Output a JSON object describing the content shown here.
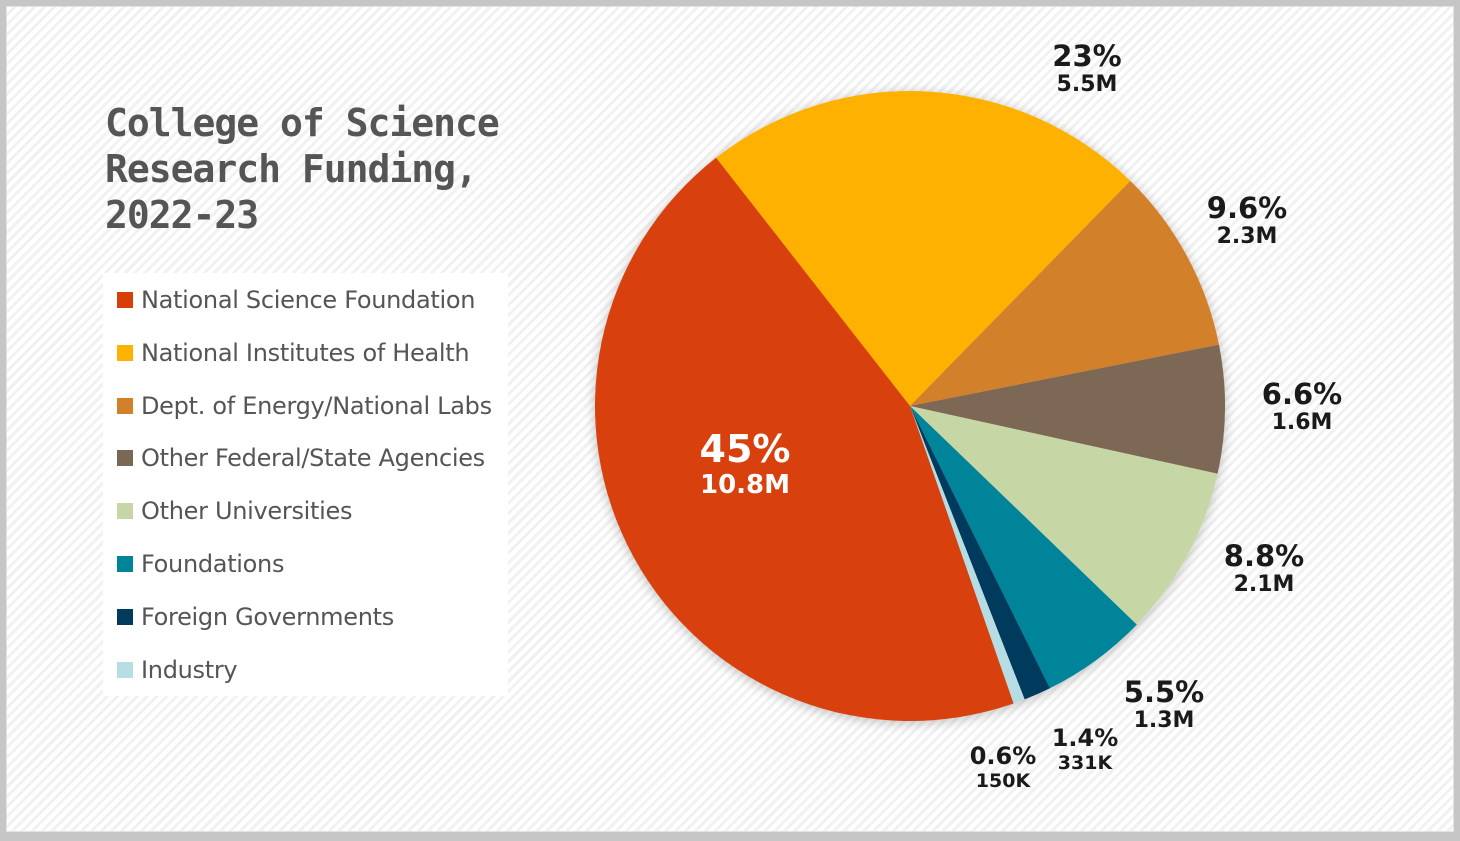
{
  "title": {
    "line1": "College of Science",
    "line2": "Research Funding,",
    "line3": "2022-23"
  },
  "legend": [
    {
      "label": "National Science Foundation",
      "color": "#d83f08"
    },
    {
      "label": "National Institutes of Health",
      "color": "#ffb100"
    },
    {
      "label": "Dept. of Energy/National Labs",
      "color": "#d2812a"
    },
    {
      "label": "Other Federal/State Agencies",
      "color": "#7b6854"
    },
    {
      "label": "Other Universities",
      "color": "#c6d7a5"
    },
    {
      "label": "Foundations",
      "color": "#00849a"
    },
    {
      "label": "Foreign Governments",
      "color": "#003a5d"
    },
    {
      "label": "Industry",
      "color": "#b5dde3"
    }
  ],
  "labels": [
    {
      "pct": "45%",
      "amt": "10.8M"
    },
    {
      "pct": "23%",
      "amt": "5.5M"
    },
    {
      "pct": "9.6%",
      "amt": "2.3M"
    },
    {
      "pct": "6.6%",
      "amt": "1.6M"
    },
    {
      "pct": "8.8%",
      "amt": "2.1M"
    },
    {
      "pct": "5.5%",
      "amt": "1.3M"
    },
    {
      "pct": "1.4%",
      "amt": "331K"
    },
    {
      "pct": "0.6%",
      "amt": "150K"
    }
  ],
  "chart_data": {
    "type": "pie",
    "title": "College of Science Research Funding, 2022-23",
    "categories": [
      "National Science Foundation",
      "National Institutes of Health",
      "Dept. of Energy/National Labs",
      "Other Federal/State Agencies",
      "Other Universities",
      "Foundations",
      "Foreign Governments",
      "Industry"
    ],
    "values": [
      45,
      23,
      9.6,
      6.6,
      8.8,
      5.5,
      1.4,
      0.6
    ],
    "amounts": [
      "10.8M",
      "5.5M",
      "2.3M",
      "1.6M",
      "2.1M",
      "1.3M",
      "331K",
      "150K"
    ],
    "unit": "%",
    "legend_position": "left"
  }
}
